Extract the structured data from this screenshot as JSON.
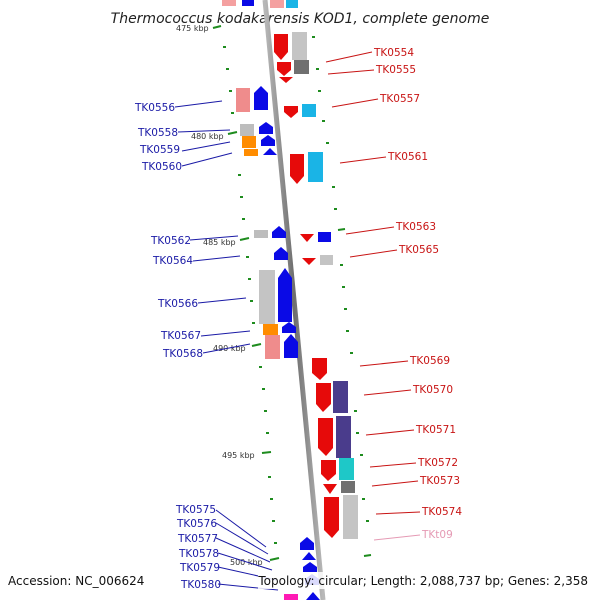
{
  "title": "Thermococcus kodakarensis KOD1, complete genome",
  "footer": {
    "accession": "Accession: NC_006624",
    "topology": "Topology: circular; Length: 2,088,737 bp; Genes: 2,358"
  },
  "scale_labels": [
    "475 kbp",
    "480 kbp",
    "485 kbp",
    "490 kbp",
    "495 kbp",
    "500 kbp"
  ],
  "genes_left": [
    "TK0556",
    "TK0558",
    "TK0559",
    "TK0560",
    "TK0562",
    "TK0564",
    "TK0566",
    "TK0567",
    "TK0568",
    "TK0575",
    "TK0576",
    "TK0577",
    "TK0578",
    "TK0579",
    "TK0580"
  ],
  "genes_right": [
    "TK0554",
    "TK0555",
    "TK0557",
    "TK0561",
    "TK0563",
    "TK0565",
    "TK0569",
    "TK0570",
    "TK0571",
    "TK0572",
    "TK0573",
    "TK0574",
    "TKt09"
  ],
  "colors": {
    "forward": "#0a0ae6",
    "reverse": "#e60a0a",
    "axis": "#8a8a8a",
    "tick": "#1e8c1e"
  }
}
